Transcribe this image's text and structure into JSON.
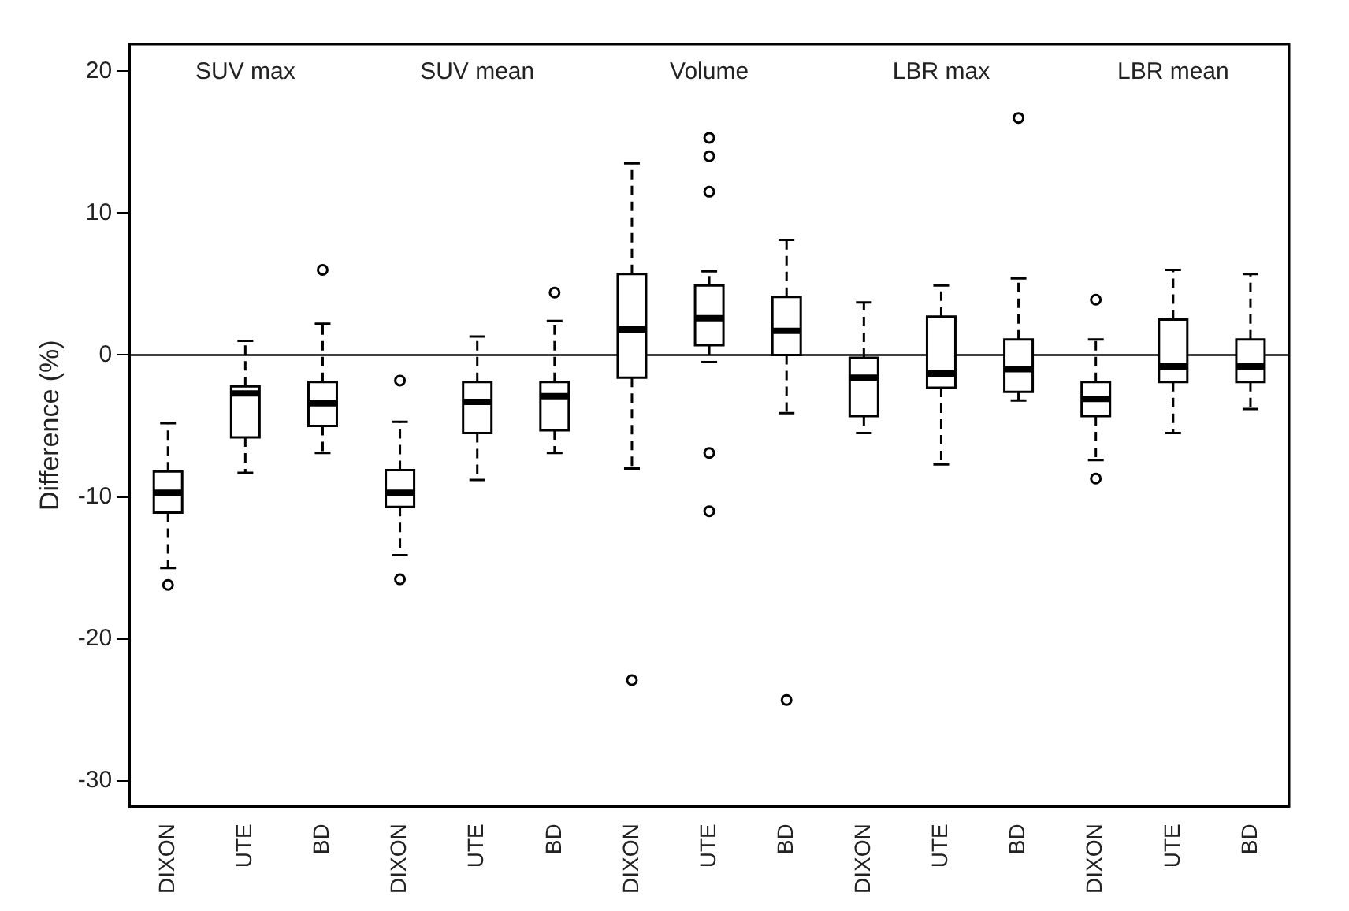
{
  "chart_data": {
    "type": "box",
    "ylabel": "Difference (%)",
    "annotations": [
      "SUV max",
      "SUV mean",
      "Volume",
      "LBR max",
      "LBR mean"
    ],
    "categories": [
      "DIXON",
      "UTE",
      "BD",
      "DIXON",
      "UTE",
      "BD",
      "DIXON",
      "UTE",
      "BD",
      "DIXON",
      "UTE",
      "BD",
      "DIXON",
      "UTE",
      "BD"
    ],
    "boxes": [
      {
        "low": -15.0,
        "q1": -11.1,
        "median": -9.7,
        "q3": -8.2,
        "high": -4.8,
        "outliers": [
          -16.2
        ]
      },
      {
        "low": -8.3,
        "q1": -5.8,
        "median": -2.7,
        "q3": -2.2,
        "high": 1.0
      },
      {
        "low": -6.9,
        "q1": -5.0,
        "median": -3.4,
        "q3": -1.9,
        "high": 2.2,
        "outliers": [
          6.0
        ]
      },
      {
        "low": -14.1,
        "q1": -10.7,
        "median": -9.7,
        "q3": -8.1,
        "high": -4.7,
        "outliers": [
          -1.8,
          -15.8
        ]
      },
      {
        "low": -8.8,
        "q1": -5.5,
        "median": -3.3,
        "q3": -1.9,
        "high": 1.3
      },
      {
        "low": -6.9,
        "q1": -5.3,
        "median": -2.9,
        "q3": -1.9,
        "high": 2.4,
        "outliers": [
          4.4
        ]
      },
      {
        "low": -8.0,
        "q1": -1.6,
        "median": 1.8,
        "q3": 5.7,
        "high": 13.5,
        "outliers": [
          -22.9
        ]
      },
      {
        "low": -0.5,
        "q1": 0.7,
        "median": 2.6,
        "q3": 4.9,
        "high": 5.9,
        "outliers": [
          15.3,
          14.0,
          11.5,
          -6.9,
          -11.0
        ]
      },
      {
        "low": -4.1,
        "q1": 0.0,
        "median": 1.7,
        "q3": 4.1,
        "high": 8.1,
        "outliers": [
          -24.3
        ]
      },
      {
        "low": -5.5,
        "q1": -4.3,
        "median": -1.6,
        "q3": -0.2,
        "high": 3.7
      },
      {
        "low": -7.7,
        "q1": -2.3,
        "median": -1.3,
        "q3": 2.7,
        "high": 4.9
      },
      {
        "low": -3.2,
        "q1": -2.6,
        "median": -1.0,
        "q3": 1.1,
        "high": 5.4,
        "outliers": [
          16.7
        ]
      },
      {
        "low": -7.4,
        "q1": -4.3,
        "median": -3.1,
        "q3": -1.9,
        "high": 1.1,
        "outliers": [
          3.9,
          -8.7
        ]
      },
      {
        "low": -5.5,
        "q1": -1.9,
        "median": -0.8,
        "q3": 2.5,
        "high": 6.0
      },
      {
        "low": -3.8,
        "q1": -1.9,
        "median": -0.8,
        "q3": 1.1,
        "high": 5.7
      }
    ],
    "ylim": [
      -31.8,
      21.9
    ],
    "yticks": [
      -30,
      -20,
      -10,
      0,
      10,
      20
    ],
    "ref_lines": [
      {
        "axis": "y",
        "value": 0,
        "color": "#000000",
        "line_style": "solid"
      }
    ],
    "grid": false,
    "legend": false
  }
}
